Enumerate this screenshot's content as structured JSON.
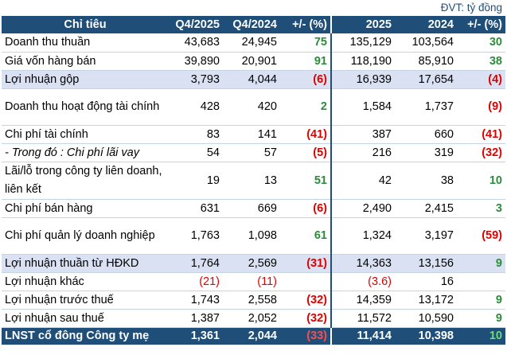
{
  "unit_note": "ĐVT: tỷ đồng",
  "colors": {
    "header_bg": "#1f4e79",
    "shade_bg": "#d9e1f2",
    "positive": "#2e8b3d",
    "negative": "#e00000"
  },
  "headers": [
    "Chỉ tiêu",
    "Q4/2025",
    "Q4/2024",
    "+/- (%)",
    "2025",
    "2024",
    "+/- (%)"
  ],
  "rows": [
    {
      "label": "Doanh thu thuần",
      "q4_2025": "43,683",
      "q4_2024": "24,945",
      "q_pct": "75",
      "y2025": "135,129",
      "y2024": "103,564",
      "y_pct": "30"
    },
    {
      "label": "Giá vốn hàng bán",
      "q4_2025": "39,890",
      "q4_2024": "20,901",
      "q_pct": "91",
      "y2025": "118,190",
      "y2024": "85,910",
      "y_pct": "38"
    },
    {
      "label": "Lợi nhuận gộp",
      "q4_2025": "3,793",
      "q4_2024": "4,044",
      "q_pct": "(6)",
      "y2025": "16,939",
      "y2024": "17,654",
      "y_pct": "(4)"
    },
    {
      "label": "Doanh thu hoạt động tài chính",
      "q4_2025": "428",
      "q4_2024": "420",
      "q_pct": "2",
      "y2025": "1,584",
      "y2024": "1,737",
      "y_pct": "(9)"
    },
    {
      "label": "Chi phí tài chính",
      "q4_2025": "83",
      "q4_2024": "141",
      "q_pct": "(41)",
      "y2025": "387",
      "y2024": "660",
      "y_pct": "(41)"
    },
    {
      "label": "- Trong đó : Chi phí lãi vay",
      "q4_2025": "54",
      "q4_2024": "57",
      "q_pct": "(5)",
      "y2025": "216",
      "y2024": "319",
      "y_pct": "(32)"
    },
    {
      "label": "Lãi/lỗ trong công ty liên doanh, liên kết",
      "q4_2025": "19",
      "q4_2024": "13",
      "q_pct": "51",
      "y2025": "42",
      "y2024": "38",
      "y_pct": "10"
    },
    {
      "label": "Chi phí bán hàng",
      "q4_2025": "631",
      "q4_2024": "669",
      "q_pct": "(6)",
      "y2025": "2,490",
      "y2024": "2,415",
      "y_pct": "3"
    },
    {
      "label": "Chi phí quản lý doanh nghiệp",
      "q4_2025": "1,763",
      "q4_2024": "1,098",
      "q_pct": "61",
      "y2025": "1,324",
      "y2024": "3,197",
      "y_pct": "(59)"
    },
    {
      "label": "Lợi nhuận thuần từ HĐKD",
      "q4_2025": "1,764",
      "q4_2024": "2,569",
      "q_pct": "(31)",
      "y2025": "14,363",
      "y2024": "13,156",
      "y_pct": "9"
    },
    {
      "label": "Lợi nhuận khác",
      "q4_2025": "(21)",
      "q4_2024": "(11)",
      "q_pct": "",
      "y2025": "(3.6)",
      "y2024": "16",
      "y_pct": ""
    },
    {
      "label": "Lợi nhuận trước thuế",
      "q4_2025": "1,743",
      "q4_2024": "2,558",
      "q_pct": "(32)",
      "y2025": "14,359",
      "y2024": "13,172",
      "y_pct": "9"
    },
    {
      "label": "Lợi nhuận sau thuế",
      "q4_2025": "1,387",
      "q4_2024": "2,052",
      "q_pct": "(32)",
      "y2025": "11,572",
      "y2024": "10,590",
      "y_pct": "9"
    }
  ],
  "total": {
    "label": "LNST cổ đông Công ty mẹ",
    "q4_2025": "1,361",
    "q4_2024": "2,044",
    "q_pct": "(33)",
    "y2025": "11,414",
    "y2024": "10,398",
    "y_pct": "10"
  }
}
